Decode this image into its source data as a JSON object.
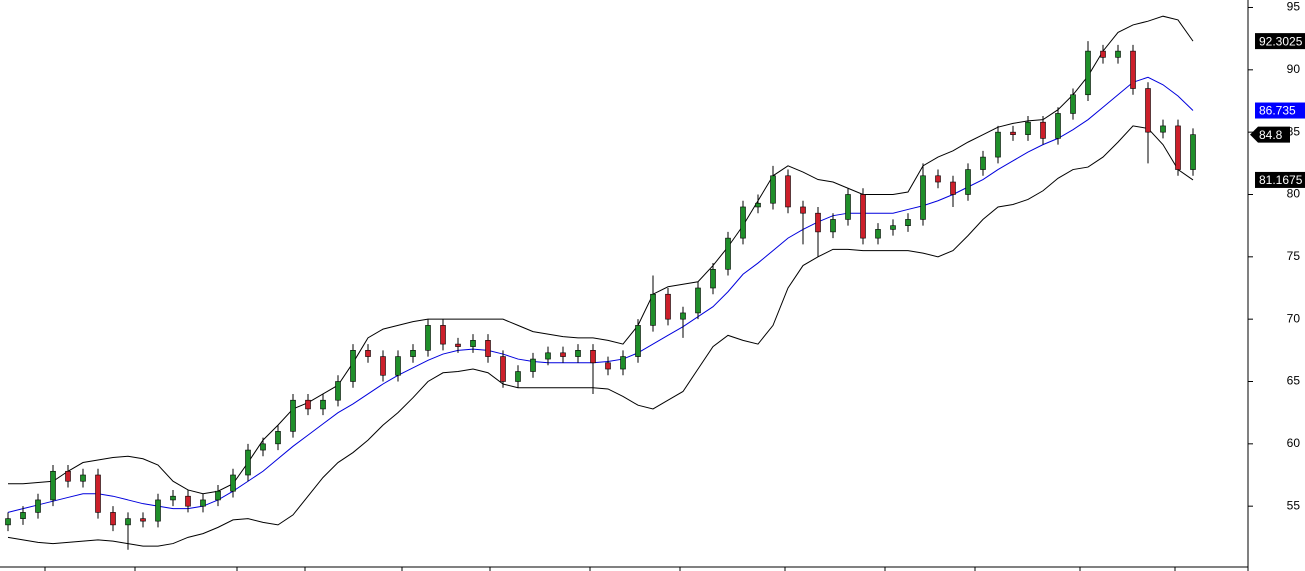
{
  "chart_data": {
    "type": "candlestick",
    "ylim": [
      49.8,
      95.6
    ],
    "yticks": [
      55,
      60,
      65,
      70,
      75,
      80,
      85,
      90,
      95
    ],
    "up_color": "#1f8f2a",
    "down_color": "#cc1f2a",
    "open": [
      53.5,
      54,
      54.5,
      55.5,
      57.8,
      57,
      57.5,
      54.5,
      53.5,
      54,
      53.8,
      55.5,
      55.8,
      55,
      55.5,
      56.2,
      57.5,
      59.5,
      60,
      61,
      63.5,
      62.8,
      63.5,
      65,
      67.5,
      67,
      65.5,
      67,
      67.5,
      69.5,
      68,
      67.8,
      68.3,
      67,
      65,
      65.8,
      66.8,
      67.3,
      67,
      67.5,
      66.5,
      66,
      67,
      69.5,
      72,
      70,
      70.5,
      72.5,
      74,
      76.5,
      79,
      79.3,
      81.5,
      79,
      78.5,
      77,
      78,
      80,
      76.5,
      77.2,
      77.5,
      78,
      81.5,
      81,
      80,
      82,
      83,
      85,
      84.8,
      85.8,
      84.5,
      86.5,
      88,
      91.5,
      91,
      91.5,
      88.5,
      85,
      85.5,
      82
    ],
    "high": [
      54.5,
      55,
      56,
      58.3,
      58.3,
      58,
      58,
      55,
      54.5,
      54.5,
      56,
      56.3,
      56.3,
      56,
      56.7,
      58,
      60,
      60.5,
      61.5,
      64,
      64,
      64,
      65.5,
      68,
      68,
      67.5,
      67.5,
      68,
      70,
      70,
      68.5,
      68.8,
      68.8,
      67.5,
      66.3,
      67.3,
      67.8,
      67.8,
      68,
      68,
      67,
      67.5,
      70,
      73.5,
      72.5,
      71,
      73,
      74.5,
      77,
      79.5,
      80,
      82.3,
      82,
      79.5,
      79,
      78.5,
      80.5,
      80.5,
      77.7,
      78,
      78.5,
      82.5,
      82,
      81.5,
      82.5,
      83.5,
      85.5,
      85.5,
      86.3,
      86.3,
      87,
      88.5,
      92.3,
      92,
      92,
      92,
      89,
      86,
      86,
      85.3
    ],
    "low": [
      53,
      53.5,
      54,
      55,
      56.5,
      56.5,
      54,
      53,
      51.5,
      53.3,
      53.3,
      55,
      54.5,
      54.5,
      55,
      55.7,
      57,
      59,
      59.5,
      60.5,
      62.3,
      62.3,
      63,
      64.5,
      66.5,
      65,
      65,
      66.5,
      67,
      67.5,
      67.3,
      67.3,
      66.5,
      64.5,
      64.5,
      65.3,
      66.3,
      66.5,
      66.5,
      64,
      65.5,
      65.5,
      66.5,
      69,
      69.5,
      68.5,
      70,
      72,
      73.5,
      76,
      78.5,
      78.8,
      78.5,
      76,
      75,
      76.5,
      77.5,
      76,
      76,
      76.7,
      77,
      77.5,
      80.5,
      79,
      79.5,
      81.5,
      82.5,
      84.3,
      84.3,
      84,
      84,
      86,
      87.5,
      90.5,
      90.5,
      88,
      82.5,
      84.5,
      81.5,
      81.5
    ],
    "close": [
      54,
      54.5,
      55.5,
      57.8,
      57,
      57.5,
      54.5,
      53.5,
      54,
      53.8,
      55.5,
      55.8,
      55,
      55.5,
      56.2,
      57.5,
      59.5,
      60,
      61,
      63.5,
      62.8,
      63.5,
      65,
      67.5,
      67,
      65.5,
      67,
      67.5,
      69.5,
      68,
      67.8,
      68.3,
      67,
      65,
      65.8,
      66.8,
      67.3,
      67,
      67.5,
      66.5,
      66,
      67,
      69.5,
      72,
      70,
      70.5,
      72.5,
      74,
      76.5,
      79,
      79.3,
      81.5,
      79,
      78.5,
      77,
      78,
      80,
      76.5,
      77.2,
      77.5,
      78,
      81.5,
      81,
      80,
      82,
      83,
      85,
      84.8,
      85.8,
      84.5,
      86.5,
      88,
      91.5,
      91,
      91.5,
      88.5,
      85,
      85.5,
      82,
      84.8
    ],
    "bands": [
      {
        "color": "#000000",
        "values": [
          56.8,
          56.8,
          56.9,
          57,
          57.8,
          58.5,
          58.7,
          58.9,
          59,
          58.8,
          58.3,
          57,
          56.3,
          56,
          56.2,
          56.8,
          58.5,
          60.3,
          61.5,
          62.8,
          63.3,
          64,
          64.7,
          66.5,
          68.5,
          69.2,
          69.5,
          69.8,
          70,
          70,
          70,
          70,
          70,
          70,
          69.5,
          69,
          68.8,
          68.6,
          68.5,
          68.5,
          68.3,
          68,
          69.5,
          72,
          72.6,
          72.8,
          73,
          74.3,
          75.8,
          77.5,
          79.5,
          81.5,
          82.3,
          81.8,
          81.2,
          81,
          80.5,
          80,
          80,
          80,
          80.2,
          82.3,
          83,
          83.5,
          84.2,
          84.8,
          85.4,
          85.7,
          85.9,
          86,
          86.8,
          88,
          89.5,
          91.5,
          93,
          93.6,
          93.9,
          94.3,
          94,
          92.3025
        ]
      },
      {
        "color": "#0000dd",
        "values": [
          54.5,
          54.8,
          55.1,
          55.4,
          55.7,
          56,
          56,
          55.8,
          55.5,
          55.2,
          55,
          54.8,
          54.8,
          55,
          55.5,
          56.2,
          57,
          57.8,
          58.8,
          59.8,
          60.7,
          61.6,
          62.5,
          63.2,
          64,
          64.8,
          65.5,
          66.1,
          66.7,
          67.2,
          67.5,
          67.6,
          67.5,
          67.2,
          66.8,
          66.6,
          66.5,
          66.5,
          66.5,
          66.5,
          66.6,
          66.8,
          67.3,
          68,
          68.7,
          69.4,
          70.2,
          71,
          72.2,
          73.6,
          74.5,
          75.5,
          76.5,
          77.2,
          77.8,
          78.3,
          78.5,
          78.5,
          78.5,
          78.5,
          78.8,
          79.1,
          79.5,
          80,
          80.6,
          81.2,
          82,
          82.7,
          83.4,
          84,
          84.5,
          85.2,
          86,
          87,
          88,
          89,
          89.4,
          88.8,
          87.9,
          86.735
        ]
      },
      {
        "color": "#000000",
        "values": [
          52.5,
          52.3,
          52.1,
          52,
          52.1,
          52.2,
          52.3,
          52.2,
          52,
          51.8,
          51.8,
          52,
          52.5,
          52.8,
          53.3,
          53.9,
          54,
          53.7,
          53.5,
          54.3,
          55.8,
          57.3,
          58.5,
          59.3,
          60.3,
          61.5,
          62.5,
          63.7,
          65,
          65.7,
          65.8,
          66,
          65.7,
          64.8,
          64.5,
          64.5,
          64.5,
          64.5,
          64.5,
          64.5,
          64.4,
          63.8,
          63.1,
          62.8,
          63.5,
          64.2,
          66,
          67.8,
          68.7,
          68.3,
          68,
          69.5,
          72.5,
          74.3,
          75,
          75.6,
          75.6,
          75.5,
          75.5,
          75.5,
          75.5,
          75.3,
          75,
          75.5,
          76.7,
          78,
          79,
          79.2,
          79.6,
          80.3,
          81.3,
          82,
          82.2,
          83,
          84.2,
          85.5,
          85.3,
          84,
          82,
          81.1675
        ]
      }
    ]
  }
}
